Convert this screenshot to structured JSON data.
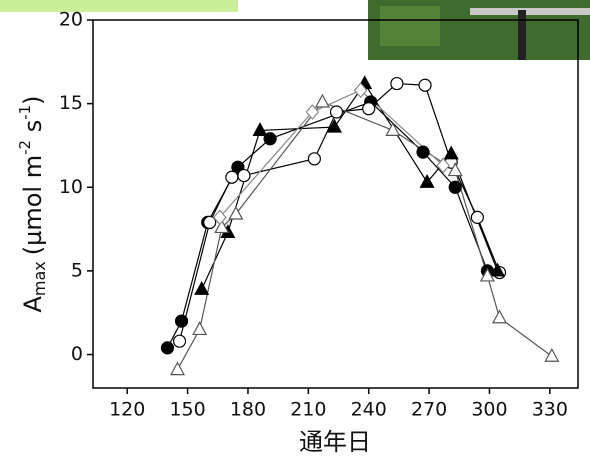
{
  "chart_data": {
    "type": "line",
    "x_label": "通年日",
    "y_label": {
      "main": "A",
      "sub": "max",
      "unit": "(µmol m",
      "exp1": "-2",
      "mid": " s",
      "exp2": "-1",
      "close": ")"
    },
    "xlim": [
      103,
      344
    ],
    "ylim": [
      -2,
      20
    ],
    "xticks": [
      120,
      150,
      180,
      210,
      240,
      270,
      300,
      330
    ],
    "yticks": [
      0,
      5,
      10,
      15,
      20
    ],
    "series": [
      {
        "marker": "filled-circle",
        "color": "#000000",
        "x": [
          140,
          147,
          160,
          175,
          191,
          241,
          267,
          283,
          299
        ],
        "values": [
          0.4,
          2.0,
          7.9,
          11.2,
          12.9,
          15.1,
          12.1,
          10.0,
          5.0
        ]
      },
      {
        "marker": "open-circle",
        "color": "#000000",
        "x": [
          146,
          161,
          172,
          178,
          213,
          224,
          240,
          254,
          268,
          281,
          294,
          305
        ],
        "values": [
          0.8,
          7.9,
          10.6,
          10.7,
          11.7,
          14.5,
          14.7,
          16.2,
          16.1,
          11.5,
          8.2,
          4.9
        ]
      },
      {
        "marker": "filled-triangle",
        "color": "#000000",
        "x": [
          157,
          170,
          186,
          223,
          238,
          269,
          281,
          304
        ],
        "values": [
          3.9,
          7.3,
          13.4,
          13.6,
          16.2,
          10.3,
          12.0,
          5.0
        ]
      },
      {
        "marker": "open-triangle",
        "color": "#555555",
        "x": [
          145,
          156,
          167,
          174,
          217,
          252,
          283,
          299,
          305,
          331
        ],
        "values": [
          -0.9,
          1.5,
          7.6,
          8.4,
          15.1,
          13.4,
          11.0,
          4.7,
          2.2,
          -0.1
        ]
      },
      {
        "marker": "open-diamond",
        "color": "#888888",
        "x": [
          166,
          212,
          236,
          277
        ],
        "values": [
          8.2,
          14.5,
          15.8,
          11.3
        ]
      }
    ]
  }
}
